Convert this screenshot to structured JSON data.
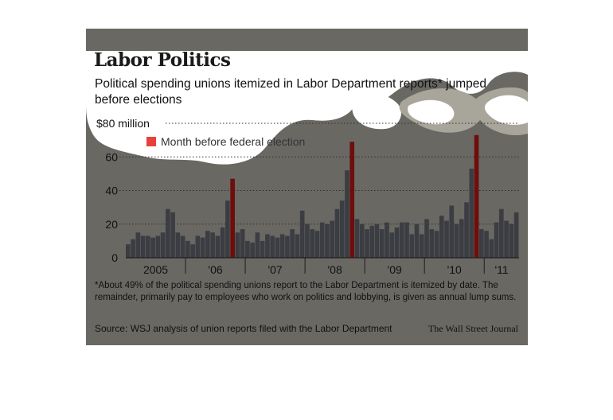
{
  "header": {
    "title": "Labor Politics",
    "subtitle": "Political spending unions itemized in Labor Department reports* jumped before elections"
  },
  "legend": {
    "label": "Month before federal election",
    "color": "#e8413c"
  },
  "footnote": "*About 49% of the political spending unions report to the Labor Department is itemized by date. The remainder, primarily pay to employees who work on politics and lobbying, is given as annual lump sums.",
  "source": "Source: WSJ analysis of union reports filed with the Labor Department",
  "credit": "The Wall Street Journal",
  "colors": {
    "background": "#6a6863",
    "bar": "#3b3d43",
    "highlight_bar": "#6e0e0c",
    "grid": "#2e2e2e"
  },
  "chart_data": {
    "type": "bar",
    "title": "Labor Politics",
    "unit": "$ million",
    "ylim": [
      0,
      80
    ],
    "yticks": [
      {
        "value": 0,
        "label": "0"
      },
      {
        "value": 20,
        "label": "20"
      },
      {
        "value": 40,
        "label": "40"
      },
      {
        "value": 60,
        "label": "60"
      },
      {
        "value": 80,
        "label": "$80 million"
      }
    ],
    "grid": true,
    "xticks": [
      "2005",
      "'06",
      "'07",
      "'08",
      "'09",
      "'10",
      "'11"
    ],
    "series": [
      {
        "name": "Month before federal election",
        "values": [
          8,
          11,
          15,
          13,
          13,
          12,
          13,
          15,
          29,
          27,
          15,
          13,
          10,
          8,
          13,
          12,
          16,
          15,
          13,
          18,
          34,
          47,
          15,
          17,
          10,
          9,
          15,
          10,
          14,
          13,
          12,
          14,
          13,
          17,
          14,
          28,
          20,
          17,
          16,
          21,
          20,
          22,
          29,
          34,
          52,
          69,
          23,
          20,
          17,
          19,
          20,
          17,
          21,
          15,
          18,
          21,
          21,
          14,
          20,
          14,
          23,
          17,
          16,
          25,
          22,
          31,
          20,
          23,
          33,
          53,
          73,
          17,
          16,
          11,
          21,
          29,
          22,
          20,
          27
        ],
        "highlight_indices": [
          21,
          45,
          70
        ]
      }
    ]
  }
}
